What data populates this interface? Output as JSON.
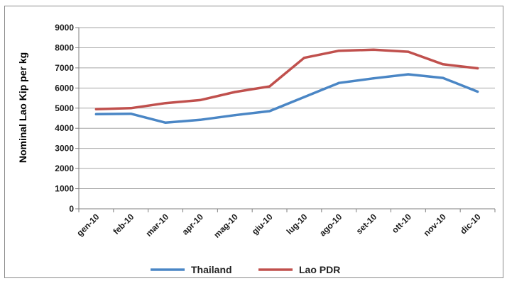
{
  "chart_data": {
    "type": "line",
    "title": "",
    "xlabel": "",
    "ylabel": "Nominal Lao Kip per kg",
    "ylim": [
      0,
      9000
    ],
    "yticks": [
      0,
      1000,
      2000,
      3000,
      4000,
      5000,
      6000,
      7000,
      8000,
      9000
    ],
    "grid": true,
    "legend": "bottom",
    "categories": [
      "gen-10",
      "feb-10",
      "mar-10",
      "apr-10",
      "mag-10",
      "giu-10",
      "lug-10",
      "ago-10",
      "set-10",
      "ott-10",
      "nov-10",
      "dic-10"
    ],
    "series": [
      {
        "name": "Thailand",
        "color": "#4a86c5",
        "values": [
          4700,
          4720,
          4280,
          4420,
          4650,
          4850,
          5550,
          6250,
          6480,
          6680,
          6500,
          5820
        ]
      },
      {
        "name": "Lao PDR",
        "color": "#c0504d",
        "values": [
          4950,
          5000,
          5250,
          5400,
          5800,
          6080,
          7500,
          7850,
          7900,
          7800,
          7180,
          6980
        ]
      }
    ]
  }
}
